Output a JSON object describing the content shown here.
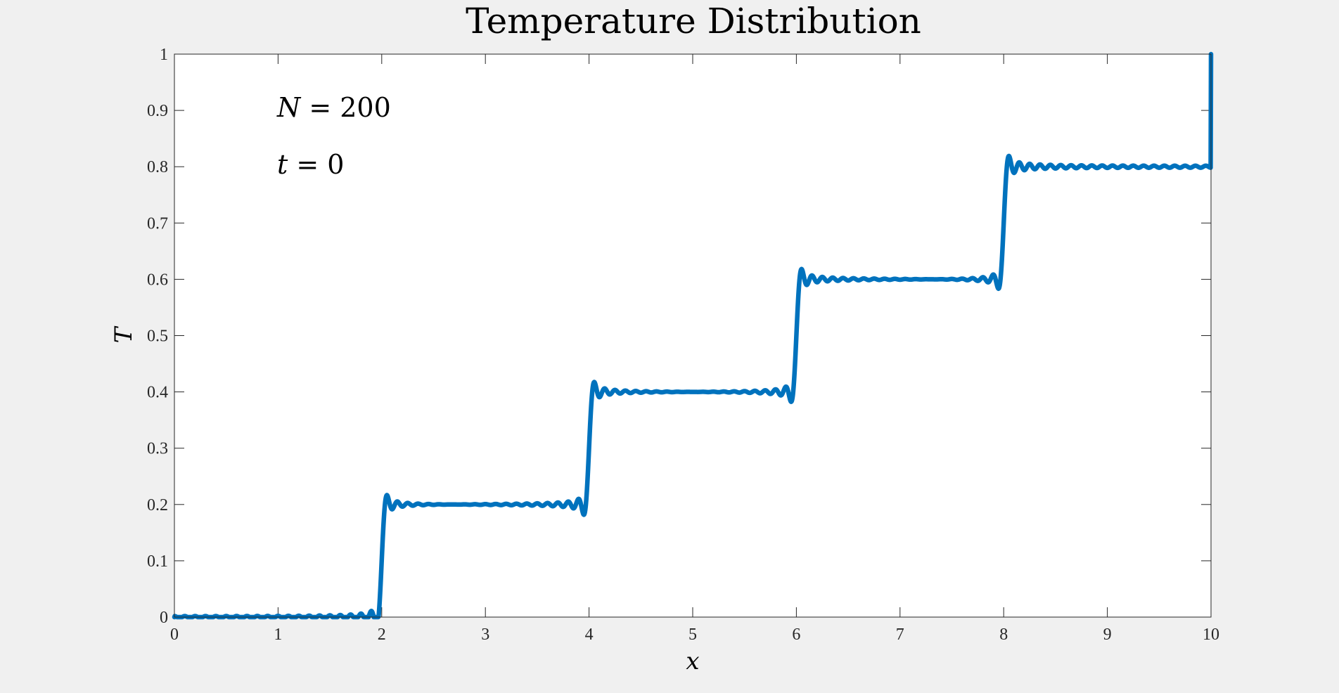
{
  "chart_data": {
    "type": "line",
    "title": "Temperature Distribution",
    "xlabel": "x",
    "ylabel": "T",
    "xlim": [
      0,
      10
    ],
    "ylim": [
      0,
      1
    ],
    "x_ticks": [
      0,
      1,
      2,
      3,
      4,
      5,
      6,
      7,
      8,
      9,
      10
    ],
    "x_tick_labels": [
      "0",
      "1",
      "2",
      "3",
      "4",
      "5",
      "6",
      "7",
      "8",
      "9",
      "10"
    ],
    "y_ticks": [
      0,
      0.1,
      0.2,
      0.3,
      0.4,
      0.5,
      0.6,
      0.7,
      0.8,
      0.9,
      1
    ],
    "y_tick_labels": [
      "0",
      "0.1",
      "0.2",
      "0.3",
      "0.4",
      "0.5",
      "0.6",
      "0.7",
      "0.8",
      "0.9",
      "1"
    ],
    "grid": false,
    "legend": false,
    "line_color": "#0072bd",
    "annotations": [
      {
        "var": "N",
        "value": "200"
      },
      {
        "var": "t",
        "value": "0"
      }
    ],
    "series": [
      {
        "fourier_terms": 200,
        "domain_length": 10,
        "steps": [
          {
            "x_start": 0,
            "x_end": 2,
            "T": 0
          },
          {
            "x_start": 2,
            "x_end": 4,
            "T": 0.2
          },
          {
            "x_start": 4,
            "x_end": 6,
            "T": 0.4
          },
          {
            "x_start": 6,
            "x_end": 8,
            "T": 0.6
          },
          {
            "x_start": 8,
            "x_end": 10,
            "T": 0.8
          }
        ],
        "boundary_values": {
          "T_at_x0": 0,
          "T_at_x10": 1
        }
      }
    ]
  }
}
